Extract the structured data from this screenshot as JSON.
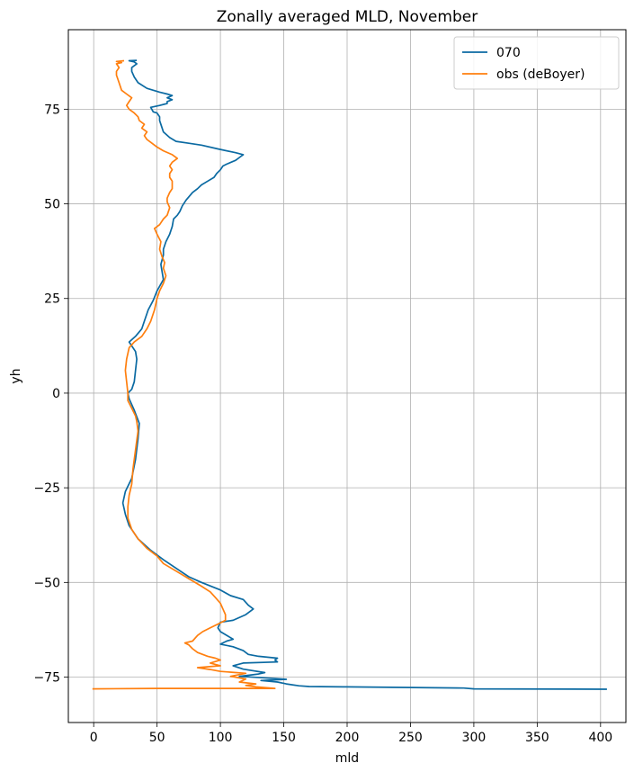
{
  "chart_data": {
    "type": "line",
    "title": "Zonally averaged MLD, November",
    "xlabel": "mld",
    "ylabel": "yh",
    "xlim": [
      -20,
      420
    ],
    "ylim": [
      -87,
      96
    ],
    "xticks": [
      0,
      50,
      100,
      150,
      200,
      250,
      300,
      350,
      400
    ],
    "yticks": [
      -75,
      -50,
      -25,
      0,
      25,
      50,
      75
    ],
    "xtick_labels": [
      "0",
      "50",
      "100",
      "150",
      "200",
      "250",
      "300",
      "350",
      "400"
    ],
    "ytick_labels": [
      "−75",
      "−50",
      "−25",
      "0",
      "25",
      "50",
      "75"
    ],
    "grid": true,
    "legend_position": "top-right",
    "series": [
      {
        "name": "070",
        "color": "#0b6aa2",
        "points": [
          [
            405,
            -78.2
          ],
          [
            300,
            -78.1
          ],
          [
            292,
            -77.9
          ],
          [
            200,
            -77.6
          ],
          [
            170,
            -77.5
          ],
          [
            162,
            -77.3
          ],
          [
            152,
            -76.8
          ],
          [
            145,
            -76.3
          ],
          [
            132,
            -75.9
          ],
          [
            152,
            -75.6
          ],
          [
            140,
            -75.3
          ],
          [
            115,
            -74.8
          ],
          [
            130,
            -74.2
          ],
          [
            135,
            -73.8
          ],
          [
            118,
            -72.9
          ],
          [
            110,
            -72.0
          ],
          [
            118,
            -71.3
          ],
          [
            145,
            -71.0
          ],
          [
            143,
            -70.5
          ],
          [
            145,
            -70.0
          ],
          [
            130,
            -69.5
          ],
          [
            122,
            -69.0
          ],
          [
            118,
            -68.0
          ],
          [
            110,
            -67.0
          ],
          [
            100,
            -66.3
          ],
          [
            105,
            -65.5
          ],
          [
            110,
            -65.0
          ],
          [
            100,
            -63.0
          ],
          [
            98,
            -62.0
          ],
          [
            100,
            -60.5
          ],
          [
            110,
            -60.0
          ],
          [
            120,
            -58.5
          ],
          [
            126,
            -57.0
          ],
          [
            122,
            -56.0
          ],
          [
            118,
            -54.5
          ],
          [
            108,
            -53.5
          ],
          [
            100,
            -52.0
          ],
          [
            85,
            -50.0
          ],
          [
            75,
            -48.5
          ],
          [
            55,
            -44.0
          ],
          [
            45,
            -41.5
          ],
          [
            35,
            -38.5
          ],
          [
            28,
            -35.0
          ],
          [
            25,
            -32.0
          ],
          [
            23,
            -29.0
          ],
          [
            25,
            -26.0
          ],
          [
            30,
            -22.5
          ],
          [
            33,
            -17.5
          ],
          [
            35,
            -12.0
          ],
          [
            36,
            -8.0
          ],
          [
            32,
            -4.5
          ],
          [
            28,
            -1.5
          ],
          [
            27,
            0.0
          ],
          [
            30,
            1.0
          ],
          [
            32,
            3.0
          ],
          [
            33,
            6.0
          ],
          [
            34,
            9.0
          ],
          [
            33,
            11.0
          ],
          [
            28,
            13.5
          ],
          [
            33,
            15.0
          ],
          [
            38,
            17.0
          ],
          [
            40,
            19.0
          ],
          [
            43,
            22.0
          ],
          [
            47,
            24.5
          ],
          [
            50,
            27.0
          ],
          [
            55,
            30.0
          ],
          [
            54,
            32.0
          ],
          [
            53,
            34.0
          ],
          [
            55,
            36.5
          ],
          [
            55,
            38.0
          ],
          [
            57,
            40.0
          ],
          [
            60,
            42.0
          ],
          [
            62,
            44.0
          ],
          [
            63,
            46.0
          ],
          [
            66,
            47.0
          ],
          [
            68,
            48.0
          ],
          [
            70,
            49.5
          ],
          [
            73,
            51.0
          ],
          [
            78,
            53.0
          ],
          [
            82,
            54.0
          ],
          [
            85,
            55.0
          ],
          [
            90,
            56.0
          ],
          [
            95,
            57.0
          ],
          [
            97,
            58.0
          ],
          [
            100,
            59.0
          ],
          [
            102,
            60.0
          ],
          [
            105,
            60.5
          ],
          [
            112,
            61.5
          ],
          [
            116,
            62.5
          ],
          [
            118,
            63.0
          ],
          [
            112,
            63.5
          ],
          [
            98,
            64.5
          ],
          [
            85,
            65.5
          ],
          [
            75,
            66.0
          ],
          [
            65,
            66.5
          ],
          [
            60,
            67.5
          ],
          [
            55,
            69.0
          ],
          [
            53,
            71.0
          ],
          [
            52,
            72.0
          ],
          [
            52,
            73.0
          ],
          [
            50,
            74.0
          ],
          [
            47,
            74.3
          ],
          [
            45,
            75.5
          ],
          [
            52,
            76.0
          ],
          [
            58,
            76.5
          ],
          [
            58,
            77.0
          ],
          [
            62,
            77.5
          ],
          [
            58,
            78.0
          ],
          [
            62,
            78.6
          ],
          [
            58,
            79.0
          ],
          [
            52,
            79.5
          ],
          [
            42,
            80.5
          ],
          [
            35,
            82.0
          ],
          [
            32,
            83.5
          ],
          [
            30,
            85.0
          ],
          [
            30,
            86.0
          ],
          [
            34,
            87.0
          ],
          [
            32,
            87.5
          ],
          [
            28,
            87.8
          ],
          [
            34,
            87.9
          ]
        ]
      },
      {
        "name": "obs (deBoyer)",
        "color": "#ff7f0e",
        "points": [
          [
            -1,
            -78.1
          ],
          [
            50,
            -78.0
          ],
          [
            143,
            -78.0
          ],
          [
            128,
            -77.6
          ],
          [
            120,
            -77.2
          ],
          [
            128,
            -76.8
          ],
          [
            115,
            -76.3
          ],
          [
            120,
            -75.5
          ],
          [
            108,
            -74.8
          ],
          [
            120,
            -74.0
          ],
          [
            100,
            -73.5
          ],
          [
            92,
            -73.0
          ],
          [
            82,
            -72.5
          ],
          [
            100,
            -72.0
          ],
          [
            92,
            -71.3
          ],
          [
            100,
            -70.5
          ],
          [
            96,
            -70.0
          ],
          [
            90,
            -69.5
          ],
          [
            82,
            -68.5
          ],
          [
            78,
            -67.5
          ],
          [
            75,
            -66.5
          ],
          [
            72,
            -66.0
          ],
          [
            78,
            -65.5
          ],
          [
            82,
            -64.0
          ],
          [
            86,
            -63.0
          ],
          [
            92,
            -62.0
          ],
          [
            98,
            -61.0
          ],
          [
            104,
            -60.0
          ],
          [
            104,
            -58.5
          ],
          [
            102,
            -57.0
          ],
          [
            100,
            -55.5
          ],
          [
            96,
            -54.0
          ],
          [
            92,
            -52.5
          ],
          [
            85,
            -51.0
          ],
          [
            75,
            -49.0
          ],
          [
            65,
            -47.0
          ],
          [
            55,
            -45.0
          ],
          [
            50,
            -43.0
          ],
          [
            42,
            -41.0
          ],
          [
            35,
            -38.5
          ],
          [
            30,
            -36.0
          ],
          [
            27,
            -33.0
          ],
          [
            27,
            -30.0
          ],
          [
            28,
            -27.0
          ],
          [
            30,
            -24.0
          ],
          [
            31,
            -20.0
          ],
          [
            33,
            -15.0
          ],
          [
            35,
            -10.0
          ],
          [
            34,
            -7.5
          ],
          [
            33,
            -6.0
          ],
          [
            30,
            -4.0
          ],
          [
            27,
            -2.0
          ],
          [
            27,
            0.0
          ],
          [
            26,
            3.0
          ],
          [
            25,
            6.0
          ],
          [
            26,
            9.0
          ],
          [
            27,
            10.5
          ],
          [
            28,
            12.0
          ],
          [
            32,
            13.5
          ],
          [
            38,
            15.0
          ],
          [
            42,
            17.0
          ],
          [
            45,
            19.0
          ],
          [
            48,
            22.0
          ],
          [
            50,
            25.0
          ],
          [
            52,
            27.0
          ],
          [
            55,
            29.0
          ],
          [
            57,
            31.0
          ],
          [
            55,
            33.0
          ],
          [
            56,
            34.5
          ],
          [
            54,
            36.0
          ],
          [
            52,
            38.0
          ],
          [
            53,
            40.0
          ],
          [
            50,
            42.0
          ],
          [
            48,
            43.5
          ],
          [
            52,
            44.5
          ],
          [
            55,
            46.0
          ],
          [
            58,
            47.0
          ],
          [
            60,
            49.0
          ],
          [
            58,
            50.5
          ],
          [
            58,
            51.5
          ],
          [
            60,
            53.0
          ],
          [
            62,
            54.0
          ],
          [
            62,
            55.0
          ],
          [
            62,
            56.0
          ],
          [
            60,
            57.0
          ],
          [
            60,
            58.0
          ],
          [
            62,
            59.0
          ],
          [
            60,
            60.0
          ],
          [
            62,
            61.0
          ],
          [
            66,
            62.0
          ],
          [
            62,
            63.0
          ],
          [
            55,
            64.0
          ],
          [
            50,
            65.0
          ],
          [
            46,
            66.0
          ],
          [
            42,
            67.0
          ],
          [
            40,
            68.0
          ],
          [
            42,
            69.0
          ],
          [
            38,
            70.0
          ],
          [
            40,
            71.0
          ],
          [
            36,
            72.0
          ],
          [
            35,
            73.0
          ],
          [
            32,
            74.0
          ],
          [
            28,
            75.0
          ],
          [
            26,
            76.0
          ],
          [
            28,
            77.0
          ],
          [
            30,
            78.0
          ],
          [
            26,
            79.0
          ],
          [
            22,
            80.0
          ],
          [
            20,
            82.0
          ],
          [
            18,
            84.0
          ],
          [
            18,
            85.0
          ],
          [
            20,
            86.0
          ],
          [
            18,
            87.0
          ],
          [
            22,
            87.3
          ],
          [
            18,
            87.6
          ],
          [
            24,
            87.8
          ]
        ]
      }
    ]
  }
}
